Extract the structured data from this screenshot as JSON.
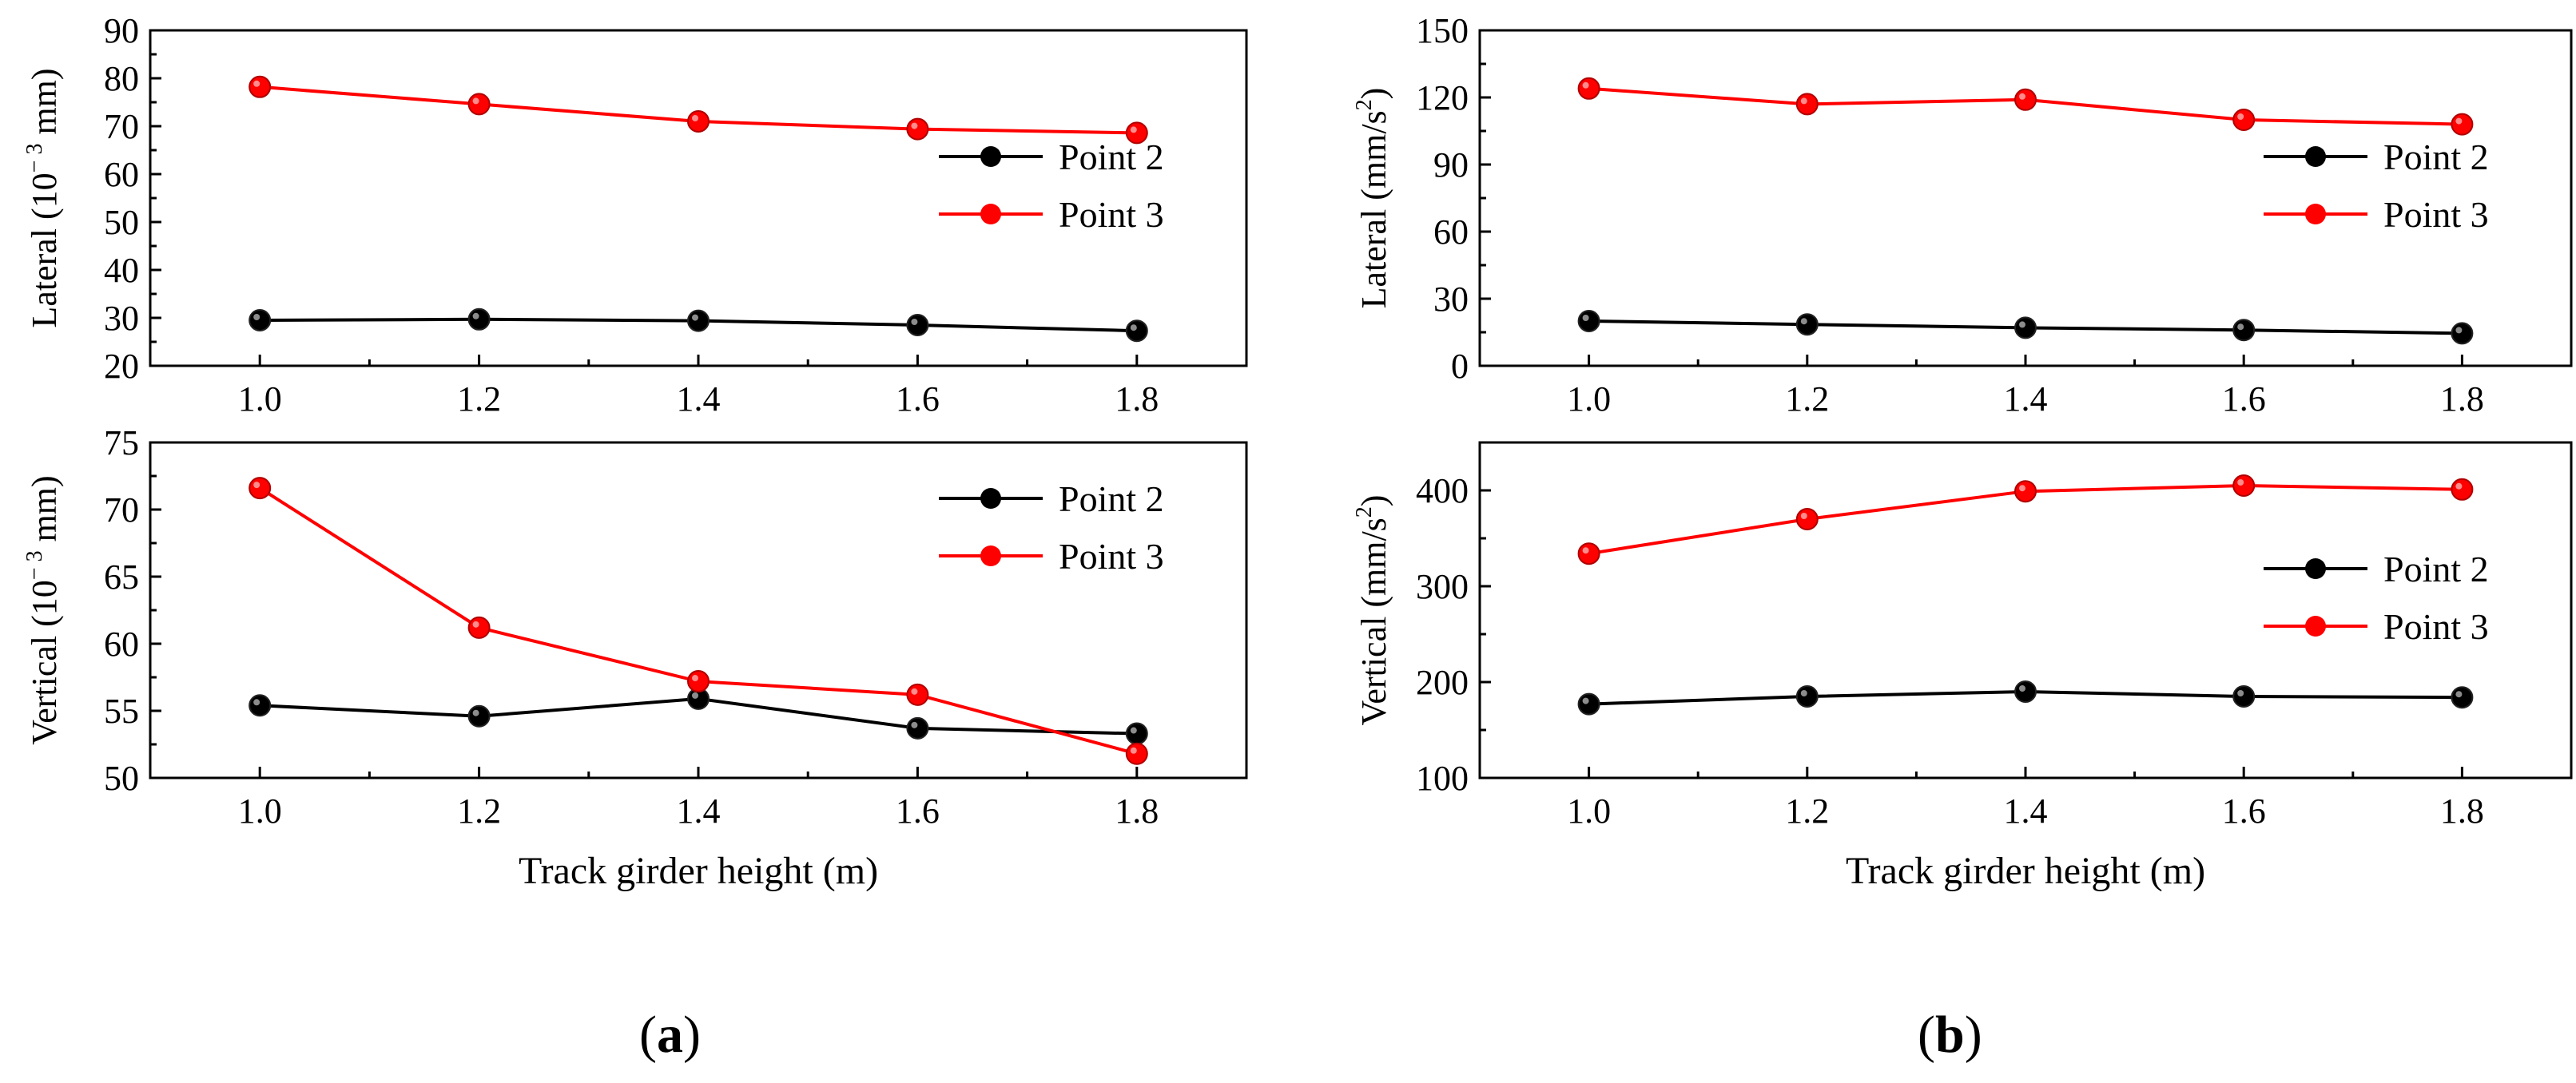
{
  "chart_data": [
    {
      "type": "line",
      "panel": "a",
      "position": "top",
      "ylabel": "Lateral (10^-3 mm)",
      "ylabel_parts": [
        "Lateral (10",
        "− 3",
        " mm)"
      ],
      "xlabel": "",
      "x": [
        1.0,
        1.2,
        1.4,
        1.6,
        1.8
      ],
      "xticks": [
        "1.0",
        "1.2",
        "1.4",
        "1.6",
        "1.8"
      ],
      "xlim": [
        0.9,
        1.9
      ],
      "ylim": [
        20,
        90
      ],
      "yticks": [
        "20",
        "30",
        "40",
        "50",
        "60",
        "70",
        "80",
        "90"
      ],
      "legend": "right",
      "series": [
        {
          "name": "Point 2",
          "color": "#000000",
          "values": [
            29.5,
            29.7,
            29.4,
            28.5,
            27.3
          ]
        },
        {
          "name": "Point 3",
          "color": "#ff0000",
          "values": [
            78.2,
            74.6,
            71.0,
            69.4,
            68.6
          ]
        }
      ]
    },
    {
      "type": "line",
      "panel": "a",
      "position": "bottom",
      "ylabel": "Vertical (10^-3 mm)",
      "ylabel_parts": [
        "Vertical (10",
        "− 3",
        " mm)"
      ],
      "xlabel": "Track girder height (m)",
      "x": [
        1.0,
        1.2,
        1.4,
        1.6,
        1.8
      ],
      "xticks": [
        "1.0",
        "1.2",
        "1.4",
        "1.6",
        "1.8"
      ],
      "xlim": [
        0.9,
        1.9
      ],
      "ylim": [
        50,
        75
      ],
      "yticks": [
        "50",
        "55",
        "60",
        "65",
        "70",
        "75"
      ],
      "legend": "top-right",
      "series": [
        {
          "name": "Point 2",
          "color": "#000000",
          "values": [
            55.4,
            54.6,
            55.9,
            53.7,
            53.3
          ]
        },
        {
          "name": "Point 3",
          "color": "#ff0000",
          "values": [
            71.6,
            61.2,
            57.2,
            56.2,
            51.8
          ]
        }
      ]
    },
    {
      "type": "line",
      "panel": "b",
      "position": "top",
      "ylabel": "Lateral (mm/s^2)",
      "ylabel_parts": [
        "Lateral (mm/s",
        "2",
        ")"
      ],
      "xlabel": "",
      "x": [
        1.0,
        1.2,
        1.4,
        1.6,
        1.8
      ],
      "xticks": [
        "1.0",
        "1.2",
        "1.4",
        "1.6",
        "1.8"
      ],
      "xlim": [
        0.9,
        1.9
      ],
      "ylim": [
        0,
        150
      ],
      "yticks": [
        "0",
        "30",
        "60",
        "90",
        "120",
        "150"
      ],
      "legend": "right",
      "series": [
        {
          "name": "Point 2",
          "color": "#000000",
          "values": [
            20,
            18.5,
            17,
            16,
            14.5
          ]
        },
        {
          "name": "Point 3",
          "color": "#ff0000",
          "values": [
            124,
            117,
            119,
            110,
            108
          ]
        }
      ]
    },
    {
      "type": "line",
      "panel": "b",
      "position": "bottom",
      "ylabel": "Vertical (mm/s^2)",
      "ylabel_parts": [
        "Vertical (mm/s",
        "2",
        ")"
      ],
      "xlabel": "Track girder height (m)",
      "x": [
        1.0,
        1.2,
        1.4,
        1.6,
        1.8
      ],
      "xticks": [
        "1.0",
        "1.2",
        "1.4",
        "1.6",
        "1.8"
      ],
      "xlim": [
        0.9,
        1.9
      ],
      "ylim": [
        100,
        450
      ],
      "yticks": [
        "100",
        "200",
        "300",
        "400"
      ],
      "legend": "right",
      "series": [
        {
          "name": "Point 2",
          "color": "#000000",
          "values": [
            177,
            185,
            190,
            185,
            184
          ]
        },
        {
          "name": "Point 3",
          "color": "#ff0000",
          "values": [
            334,
            370,
            399,
            405,
            401
          ]
        }
      ]
    }
  ],
  "captions": {
    "a": {
      "open": "(",
      "letter": "a",
      "close": ")"
    },
    "b": {
      "open": "(",
      "letter": "b",
      "close": ")"
    }
  }
}
